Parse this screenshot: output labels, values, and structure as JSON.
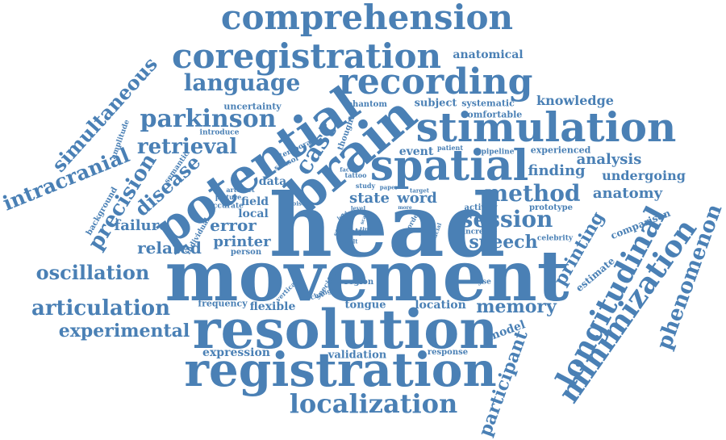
{
  "colors": {
    "word": "#4a80b5",
    "background": "#ffffff"
  },
  "words": [
    "head",
    "movement",
    "resolution",
    "registration",
    "brain",
    "potential",
    "spatial",
    "stimulation",
    "recording",
    "coregistration",
    "comprehension",
    "localization",
    "longitudinal",
    "minimization",
    "phenomenon",
    "participant",
    "parkinson",
    "language",
    "retrieval",
    "simultaneous",
    "intracranial",
    "precision",
    "disease",
    "cast",
    "session",
    "method",
    "speech",
    "memory",
    "oscillation",
    "articulation",
    "experimental",
    "anatomy",
    "printing",
    "failure",
    "related",
    "error",
    "printer",
    "state",
    "word",
    "finding",
    "undergoing",
    "analysis",
    "knowledge",
    "anatomical",
    "subject",
    "tongue",
    "location",
    "model",
    "expression",
    "validation",
    "flexible",
    "data",
    "field",
    "local",
    "event",
    "estimate",
    "comparison",
    "uncertainty",
    "systematic",
    "comfortable",
    "experienced",
    "phantom",
    "thought",
    "temporal",
    "sensor",
    "semantic",
    "amplitude",
    "introduce",
    "background",
    "tattoo",
    "study",
    "region",
    "specific",
    "change",
    "vertical",
    "noise",
    "response",
    "analyse",
    "frequency",
    "individual",
    "accurate",
    "picture",
    "artefact",
    "person",
    "activity",
    "prototype",
    "increase",
    "celebrity",
    "pipeline",
    "patient",
    "paper",
    "target",
    "factor",
    "level",
    "more",
    "safety",
    "time",
    "source",
    "result",
    "scale",
    "order",
    "fiducial",
    "lead"
  ]
}
